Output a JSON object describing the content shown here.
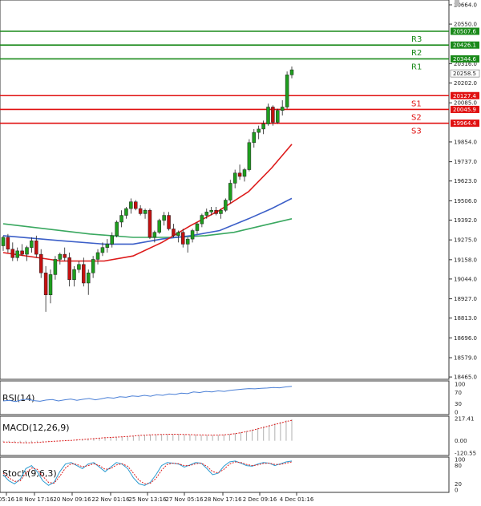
{
  "chart_data": {
    "type": "candlestick",
    "y_axis": {
      "ylim": [
        18465.5,
        20664.0
      ],
      "ticks": [
        "20664.0",
        "20550.0",
        "20316.0",
        "20202.0",
        "20085.0",
        "19854.0",
        "19737.0",
        "19623.0",
        "19506.0",
        "19392.0",
        "19275.0",
        "19158.0",
        "19044.0",
        "18927.0",
        "18813.0",
        "18696.0",
        "18579.0",
        "18465.0"
      ]
    },
    "x_axis": {
      "tick_labels": [
        "05:16",
        "18 Nov 17:16",
        "20 Nov 09:16",
        "22 Nov 01:16",
        "25 Nov 13:16",
        "27 Nov 05:16",
        "28 Nov 17:16",
        "2 Dec 09:16",
        "4 Dec 01:16"
      ]
    },
    "levels": [
      {
        "name": "R3",
        "value": 20507.6,
        "label": "20507.6",
        "color": "#1a8a1a"
      },
      {
        "name": "R2",
        "value": 20426.1,
        "label": "20426.1",
        "color": "#1a8a1a"
      },
      {
        "name": "R1",
        "value": 20344.6,
        "label": "20344.6",
        "color": "#1a8a1a"
      },
      {
        "name": "S1",
        "value": 20127.4,
        "label": "20127.4",
        "color": "#e01010"
      },
      {
        "name": "S2",
        "value": 20045.9,
        "label": "20045.9",
        "color": "#e01010"
      },
      {
        "name": "S3",
        "value": 19964.4,
        "label": "19964.4",
        "color": "#e01010"
      }
    ],
    "last_price": {
      "value": 20258.5,
      "label": "20258.5"
    },
    "candles": [
      [
        19240,
        19300,
        19210,
        19290
      ],
      [
        19290,
        19310,
        19200,
        19220
      ],
      [
        19220,
        19260,
        19150,
        19170
      ],
      [
        19170,
        19230,
        19150,
        19210
      ],
      [
        19210,
        19250,
        19180,
        19190
      ],
      [
        19190,
        19240,
        19150,
        19230
      ],
      [
        19230,
        19290,
        19200,
        19270
      ],
      [
        19270,
        19300,
        19170,
        19190
      ],
      [
        19190,
        19220,
        19050,
        19080
      ],
      [
        19080,
        19120,
        18850,
        18950
      ],
      [
        18950,
        19100,
        18900,
        19070
      ],
      [
        19070,
        19180,
        19040,
        19160
      ],
      [
        19160,
        19200,
        19130,
        19190
      ],
      [
        19190,
        19230,
        19150,
        19170
      ],
      [
        19170,
        19200,
        19000,
        19040
      ],
      [
        19040,
        19120,
        19000,
        19100
      ],
      [
        19100,
        19150,
        19080,
        19130
      ],
      [
        19130,
        19170,
        19000,
        19020
      ],
      [
        19020,
        19100,
        18950,
        19080
      ],
      [
        19080,
        19180,
        19050,
        19160
      ],
      [
        19160,
        19220,
        19130,
        19200
      ],
      [
        19200,
        19260,
        19180,
        19230
      ],
      [
        19230,
        19280,
        19200,
        19250
      ],
      [
        19250,
        19320,
        19230,
        19300
      ],
      [
        19300,
        19390,
        19290,
        19380
      ],
      [
        19380,
        19450,
        19350,
        19420
      ],
      [
        19420,
        19470,
        19400,
        19460
      ],
      [
        19460,
        19520,
        19430,
        19500
      ],
      [
        19500,
        19510,
        19450,
        19460
      ],
      [
        19460,
        19480,
        19420,
        19430
      ],
      [
        19430,
        19460,
        19400,
        19450
      ],
      [
        19450,
        19460,
        19280,
        19290
      ],
      [
        19290,
        19330,
        19260,
        19320
      ],
      [
        19320,
        19400,
        19310,
        19390
      ],
      [
        19390,
        19440,
        19360,
        19420
      ],
      [
        19420,
        19440,
        19330,
        19340
      ],
      [
        19340,
        19370,
        19290,
        19300
      ],
      [
        19300,
        19330,
        19260,
        19320
      ],
      [
        19320,
        19340,
        19230,
        19250
      ],
      [
        19250,
        19290,
        19200,
        19280
      ],
      [
        19280,
        19340,
        19260,
        19330
      ],
      [
        19330,
        19380,
        19310,
        19370
      ],
      [
        19370,
        19430,
        19350,
        19420
      ],
      [
        19420,
        19460,
        19400,
        19440
      ],
      [
        19440,
        19470,
        19420,
        19450
      ],
      [
        19450,
        19470,
        19420,
        19430
      ],
      [
        19430,
        19460,
        19400,
        19450
      ],
      [
        19450,
        19520,
        19440,
        19510
      ],
      [
        19510,
        19630,
        19490,
        19610
      ],
      [
        19610,
        19690,
        19580,
        19670
      ],
      [
        19670,
        19720,
        19630,
        19650
      ],
      [
        19650,
        19700,
        19620,
        19690
      ],
      [
        19690,
        19870,
        19680,
        19850
      ],
      [
        19850,
        19930,
        19820,
        19910
      ],
      [
        19910,
        19950,
        19870,
        19930
      ],
      [
        19930,
        19980,
        19900,
        19960
      ],
      [
        19960,
        20080,
        19950,
        20060
      ],
      [
        20060,
        20070,
        19950,
        19970
      ],
      [
        19970,
        20050,
        19960,
        20040
      ],
      [
        20040,
        20100,
        20010,
        20060
      ],
      [
        20060,
        20270,
        20050,
        20250
      ],
      [
        20250,
        20300,
        20230,
        20280
      ]
    ],
    "ema_red": [
      [
        0.0,
        19200
      ],
      [
        0.2,
        19150
      ],
      [
        0.35,
        19150
      ],
      [
        0.45,
        19180
      ],
      [
        0.55,
        19260
      ],
      [
        0.65,
        19360
      ],
      [
        0.75,
        19450
      ],
      [
        0.85,
        19560
      ],
      [
        0.93,
        19700
      ],
      [
        1.0,
        19840
      ]
    ],
    "ema_blue": [
      [
        0.0,
        19300
      ],
      [
        0.2,
        19270
      ],
      [
        0.35,
        19250
      ],
      [
        0.45,
        19250
      ],
      [
        0.55,
        19280
      ],
      [
        0.65,
        19300
      ],
      [
        0.75,
        19330
      ],
      [
        0.85,
        19400
      ],
      [
        0.93,
        19460
      ],
      [
        1.0,
        19520
      ]
    ],
    "ema_green": [
      [
        0.0,
        19370
      ],
      [
        0.15,
        19340
      ],
      [
        0.3,
        19310
      ],
      [
        0.45,
        19290
      ],
      [
        0.6,
        19290
      ],
      [
        0.7,
        19300
      ],
      [
        0.8,
        19320
      ],
      [
        0.9,
        19360
      ],
      [
        1.0,
        19400
      ]
    ],
    "rsi": {
      "title": "RSI(14)",
      "ticks": [
        "100",
        "70",
        "30",
        "0"
      ],
      "ylim": [
        0,
        100
      ],
      "values": [
        40,
        42,
        38,
        44,
        46,
        41,
        39,
        43,
        45,
        40,
        44,
        47,
        42,
        46,
        49,
        44,
        48,
        52,
        50,
        55,
        53,
        58,
        56,
        60,
        57,
        62,
        60,
        65,
        63,
        68,
        66,
        72,
        70,
        74,
        72,
        76,
        74,
        78,
        80,
        82,
        84,
        83,
        85,
        86,
        88,
        87,
        90,
        92
      ]
    },
    "macd": {
      "title": "MACD(12,26,9)",
      "ticks": [
        "217.41",
        "0.00",
        "-120.55"
      ],
      "ylim": [
        -120.55,
        217.41
      ],
      "hist": [
        -10,
        -15,
        -18,
        -20,
        -22,
        -18,
        -12,
        -8,
        -5,
        -2,
        0,
        2,
        5,
        10,
        15,
        20,
        25,
        30,
        32,
        35,
        38,
        40,
        45,
        50,
        55,
        58,
        60,
        62,
        64,
        65,
        66,
        64,
        62,
        60,
        58,
        56,
        55,
        54,
        56,
        60,
        66,
        74,
        84,
        96,
        110,
        125,
        140,
        155,
        170,
        185,
        200,
        210
      ],
      "signal": [
        -12,
        -14,
        -16,
        -18,
        -20,
        -19,
        -16,
        -12,
        -8,
        -5,
        -2,
        1,
        4,
        8,
        12,
        17,
        21,
        26,
        30,
        33,
        36,
        39,
        43,
        47,
        52,
        55,
        58,
        60,
        62,
        63,
        64,
        63,
        62,
        60,
        58,
        57,
        56,
        55,
        56,
        58,
        63,
        70,
        79,
        90,
        103,
        117,
        131,
        146,
        160,
        174,
        188,
        200
      ]
    },
    "stoch": {
      "title": "Stoch(9,6,3)",
      "ticks": [
        "100",
        "80",
        "20",
        "0"
      ],
      "ylim": [
        0,
        100
      ],
      "k": [
        50,
        30,
        20,
        35,
        70,
        80,
        60,
        30,
        15,
        25,
        60,
        85,
        90,
        80,
        70,
        85,
        90,
        75,
        60,
        75,
        90,
        85,
        70,
        40,
        20,
        15,
        25,
        50,
        80,
        90,
        88,
        85,
        75,
        82,
        90,
        88,
        70,
        50,
        55,
        78,
        92,
        95,
        88,
        80,
        78,
        85,
        90,
        88,
        80,
        86,
        92,
        95
      ],
      "d": [
        55,
        40,
        28,
        30,
        55,
        72,
        68,
        45,
        25,
        22,
        45,
        72,
        86,
        84,
        76,
        80,
        86,
        80,
        68,
        70,
        82,
        86,
        78,
        55,
        32,
        20,
        22,
        38,
        65,
        84,
        88,
        86,
        80,
        80,
        86,
        88,
        78,
        60,
        56,
        68,
        85,
        92,
        90,
        84,
        80,
        82,
        87,
        88,
        84,
        84,
        88,
        92
      ]
    }
  }
}
